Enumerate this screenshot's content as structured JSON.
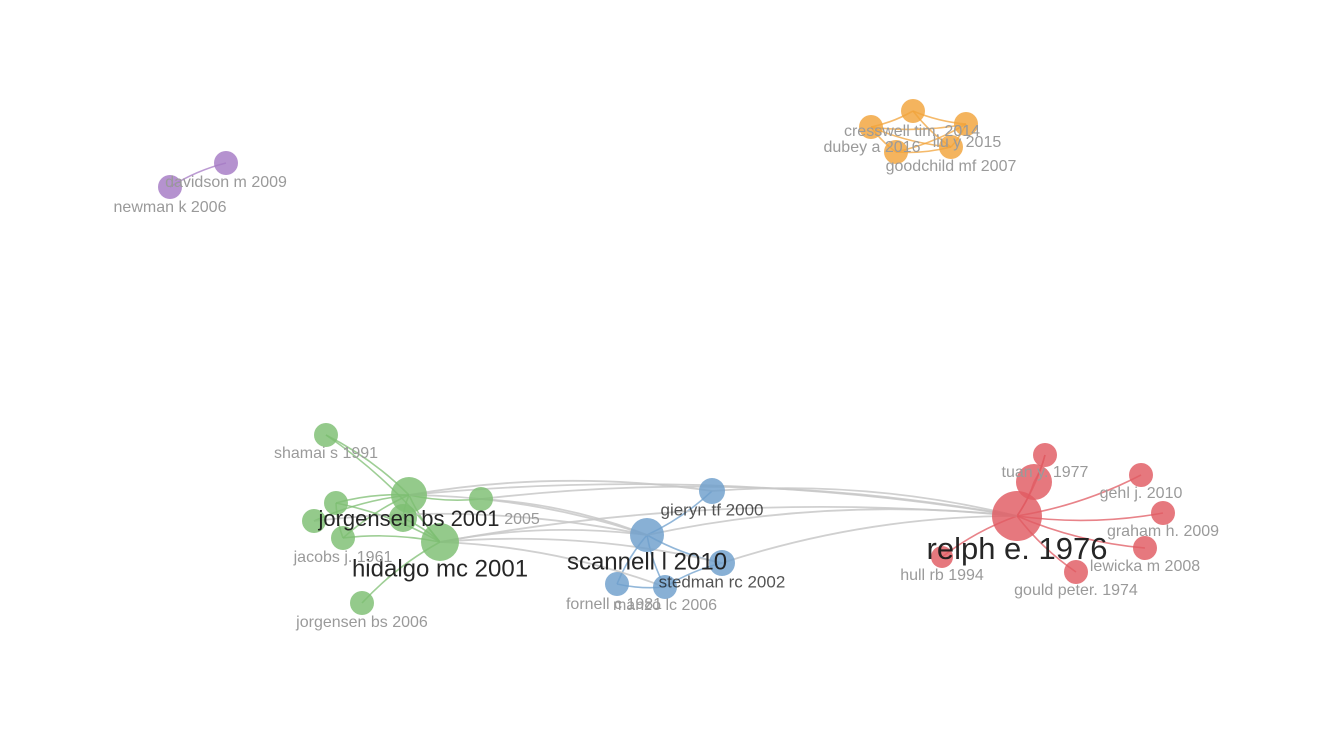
{
  "clusters": [
    {
      "id": "red",
      "color": "#e05a62"
    },
    {
      "id": "green",
      "color": "#7dbe72"
    },
    {
      "id": "blue",
      "color": "#6e9fcc"
    },
    {
      "id": "orange",
      "color": "#f2a33a"
    },
    {
      "id": "purple",
      "color": "#a57ac4"
    }
  ],
  "link_colors": {
    "cross": "#c8c8c8"
  },
  "nodes": [
    {
      "id": "relph",
      "label": "relph e. 1976",
      "cluster": "red",
      "weight": 5
    },
    {
      "id": "tuan",
      "label": "tuan y. 1977",
      "cluster": "red",
      "weight": 2
    },
    {
      "id": "red_top",
      "label": "",
      "cluster": "red",
      "weight": 1
    },
    {
      "id": "gehl",
      "label": "gehl j. 2010",
      "cluster": "red",
      "weight": 1
    },
    {
      "id": "graham",
      "label": "graham h. 2009",
      "cluster": "red",
      "weight": 1
    },
    {
      "id": "lewicka",
      "label": "lewicka m 2008",
      "cluster": "red",
      "weight": 1
    },
    {
      "id": "gould",
      "label": "gould peter. 1974",
      "cluster": "red",
      "weight": 1
    },
    {
      "id": "hull",
      "label": "hull rb 1994",
      "cluster": "red",
      "weight": 1
    },
    {
      "id": "jorgensen2001",
      "label": "jorgensen bs 2001",
      "cluster": "green",
      "weight": 3
    },
    {
      "id": "hidalgo",
      "label": "hidalgo mc 2001",
      "cluster": "green",
      "weight": 3
    },
    {
      "id": "shamai",
      "label": "shamai s 1991",
      "cluster": "green",
      "weight": 1
    },
    {
      "id": "green2005",
      "label": "2005",
      "cluster": "green",
      "weight": 1
    },
    {
      "id": "jacobs",
      "label": "jacobs j. 1961",
      "cluster": "green",
      "weight": 1
    },
    {
      "id": "jorgensen2006",
      "label": "jorgensen bs 2006",
      "cluster": "green",
      "weight": 1
    },
    {
      "id": "green_a",
      "label": "",
      "cluster": "green",
      "weight": 1
    },
    {
      "id": "green_b",
      "label": "",
      "cluster": "green",
      "weight": 1
    },
    {
      "id": "green_c",
      "label": "",
      "cluster": "green",
      "weight": 1
    },
    {
      "id": "scannell",
      "label": "scannell l 2010",
      "cluster": "blue",
      "weight": 3
    },
    {
      "id": "gieryn",
      "label": "gieryn tf 2000",
      "cluster": "blue",
      "weight": 1
    },
    {
      "id": "stedman",
      "label": "stedman rc 2002",
      "cluster": "blue",
      "weight": 1
    },
    {
      "id": "fornell",
      "label": "fornell c 1981",
      "cluster": "blue",
      "weight": 1
    },
    {
      "id": "manzo",
      "label": "manzo lc 2006",
      "cluster": "blue",
      "weight": 1
    },
    {
      "id": "cresswell",
      "label": "cresswell tim. 2014",
      "cluster": "orange",
      "weight": 1
    },
    {
      "id": "dubey",
      "label": "dubey a 2016",
      "cluster": "orange",
      "weight": 1
    },
    {
      "id": "liu",
      "label": "liu y 2015",
      "cluster": "orange",
      "weight": 1
    },
    {
      "id": "goodchild",
      "label": "goodchild mf 2007",
      "cluster": "orange",
      "weight": 1
    },
    {
      "id": "orange_top",
      "label": "",
      "cluster": "orange",
      "weight": 1
    },
    {
      "id": "davidson",
      "label": "davidson m 2009",
      "cluster": "purple",
      "weight": 1
    },
    {
      "id": "newman",
      "label": "newman k 2006",
      "cluster": "purple",
      "weight": 1
    }
  ],
  "links": [
    [
      "relph",
      "tuan"
    ],
    [
      "relph",
      "red_top"
    ],
    [
      "relph",
      "gehl"
    ],
    [
      "relph",
      "graham"
    ],
    [
      "relph",
      "lewicka"
    ],
    [
      "relph",
      "gould"
    ],
    [
      "relph",
      "hull"
    ],
    [
      "tuan",
      "red_top"
    ],
    [
      "jorgensen2001",
      "hidalgo"
    ],
    [
      "jorgensen2001",
      "shamai"
    ],
    [
      "jorgensen2001",
      "green2005"
    ],
    [
      "jorgensen2001",
      "jacobs"
    ],
    [
      "jorgensen2001",
      "green_a"
    ],
    [
      "jorgensen2001",
      "green_b"
    ],
    [
      "jorgensen2001",
      "green_c"
    ],
    [
      "hidalgo",
      "jorgensen2006"
    ],
    [
      "hidalgo",
      "shamai"
    ],
    [
      "hidalgo",
      "jacobs"
    ],
    [
      "hidalgo",
      "green_a"
    ],
    [
      "hidalgo",
      "green_c"
    ],
    [
      "green_a",
      "jacobs"
    ],
    [
      "scannell",
      "gieryn"
    ],
    [
      "scannell",
      "stedman"
    ],
    [
      "scannell",
      "fornell"
    ],
    [
      "scannell",
      "manzo"
    ],
    [
      "fornell",
      "manzo"
    ],
    [
      "stedman",
      "manzo"
    ],
    [
      "cresswell",
      "dubey"
    ],
    [
      "cresswell",
      "orange_top"
    ],
    [
      "cresswell",
      "liu"
    ],
    [
      "dubey",
      "goodchild"
    ],
    [
      "dubey",
      "liu"
    ],
    [
      "liu",
      "goodchild"
    ],
    [
      "orange_top",
      "liu"
    ],
    [
      "orange_top",
      "goodchild"
    ],
    [
      "cresswell",
      "goodchild"
    ],
    [
      "davidson",
      "newman"
    ],
    [
      "relph",
      "scannell"
    ],
    [
      "relph",
      "jorgensen2001"
    ],
    [
      "relph",
      "hidalgo"
    ],
    [
      "relph",
      "gieryn"
    ],
    [
      "relph",
      "stedman"
    ],
    [
      "relph",
      "green2005"
    ],
    [
      "gieryn",
      "jorgensen2001"
    ],
    [
      "scannell",
      "jorgensen2001"
    ],
    [
      "scannell",
      "hidalgo"
    ],
    [
      "stedman",
      "hidalgo"
    ],
    [
      "scannell",
      "green2005"
    ],
    [
      "manzo",
      "hidalgo"
    ],
    [
      "scannell",
      "green_b"
    ]
  ]
}
